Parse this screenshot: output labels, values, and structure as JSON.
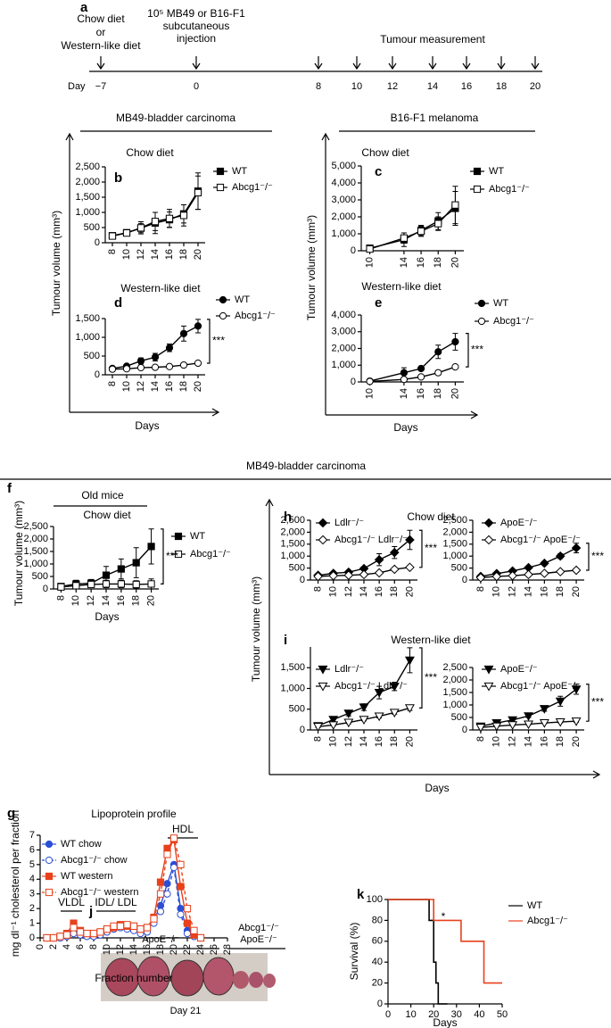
{
  "timeline": {
    "panel": "a",
    "day_label": "Day",
    "days": [
      "−7",
      "0",
      "8",
      "10",
      "12",
      "14",
      "16",
      "18",
      "20"
    ],
    "diet": [
      "Chow diet",
      "or",
      "Western-like diet"
    ],
    "injection": [
      "10⁵ MB49 or B16-F1",
      "subcutaneous",
      "injection"
    ],
    "measurement": "Tumour measurement"
  },
  "headers": [
    "MB49-bladder carcinoma",
    "B16-F1 melanoma",
    "MB49-bladder carcinoma"
  ],
  "axis_titles": [
    "Tumour volume (mm³)",
    "Days",
    "Tumour volume (mm³)",
    "Days",
    "Tumour volume (mm³)",
    "Days"
  ],
  "photo": {
    "panel": "j",
    "groups": [
      [
        "ApoE⁻/⁻"
      ],
      [
        "Abcg1⁻/⁻",
        "ApoE⁻/⁻"
      ]
    ],
    "caption": "Day 21"
  },
  "chart_data": [
    {
      "type": "line",
      "panel": "b",
      "title": "Chow diet",
      "x": [
        8,
        10,
        12,
        14,
        16,
        18,
        20
      ],
      "xlim": [
        7,
        21
      ],
      "xticks": [
        8,
        10,
        12,
        14,
        16,
        18,
        20
      ],
      "ylim": [
        0,
        2500
      ],
      "yticks": [
        0,
        500,
        {
          "value": 1000,
          "label": "1,000"
        },
        {
          "value": 1500,
          "label": "1,500"
        },
        {
          "value": 2000,
          "label": "2,000"
        },
        {
          "value": 2500,
          "label": "2,500"
        }
      ],
      "series": [
        {
          "name": "WT",
          "color": "#000000",
          "marker": "square",
          "filled": true,
          "values": [
            230,
            330,
            480,
            650,
            760,
            950,
            1700
          ],
          "errors": [
            50,
            80,
            150,
            350,
            250,
            300,
            600
          ]
        },
        {
          "name": "Abcg1⁻/⁻",
          "color": "#000000",
          "marker": "square",
          "filled": false,
          "values": [
            220,
            320,
            490,
            700,
            800,
            900,
            1650
          ],
          "errors": [
            50,
            80,
            200,
            300,
            300,
            350,
            550
          ]
        }
      ]
    },
    {
      "type": "line",
      "panel": "d",
      "title": "Western-like diet",
      "annotation": "***",
      "x": [
        8,
        10,
        12,
        14,
        16,
        18,
        20
      ],
      "xlim": [
        7,
        21
      ],
      "xticks": [
        8,
        10,
        12,
        14,
        16,
        18,
        20
      ],
      "ylim": [
        0,
        1500
      ],
      "yticks": [
        0,
        500,
        {
          "value": 1000,
          "label": "1,000"
        },
        {
          "value": 1500,
          "label": "1,500"
        }
      ],
      "series": [
        {
          "name": "WT",
          "color": "#000000",
          "marker": "circle",
          "filled": true,
          "values": [
            170,
            230,
            370,
            470,
            720,
            1100,
            1300
          ],
          "errors": [
            30,
            50,
            80,
            100,
            100,
            200,
            180
          ]
        },
        {
          "name": "Abcg1⁻/⁻",
          "color": "#000000",
          "marker": "circle",
          "filled": false,
          "values": [
            150,
            160,
            190,
            200,
            220,
            260,
            310
          ],
          "errors": [
            20,
            30,
            30,
            30,
            30,
            40,
            50
          ]
        }
      ]
    },
    {
      "type": "line",
      "panel": "c",
      "title": "Chow diet",
      "x": [
        10,
        14,
        16,
        18,
        20
      ],
      "xlim": [
        9,
        21
      ],
      "xticks": [
        10,
        14,
        16,
        18,
        20
      ],
      "ylim": [
        0,
        5000
      ],
      "yticks": [
        0,
        {
          "value": 1000,
          "label": "1,000"
        },
        {
          "value": 2000,
          "label": "2,000"
        },
        {
          "value": 3000,
          "label": "3,000"
        },
        {
          "value": 4000,
          "label": "4,000"
        },
        {
          "value": 5000,
          "label": "5,000"
        }
      ],
      "series": [
        {
          "name": "WT",
          "color": "#000000",
          "marker": "square",
          "filled": true,
          "values": [
            150,
            650,
            1200,
            1750,
            2500
          ],
          "errors": [
            100,
            400,
            300,
            500,
            1000
          ]
        },
        {
          "name": "Abcg1⁻/⁻",
          "color": "#000000",
          "marker": "square",
          "filled": false,
          "values": [
            100,
            750,
            1150,
            1600,
            2700
          ],
          "errors": [
            100,
            300,
            300,
            400,
            1100
          ]
        }
      ]
    },
    {
      "type": "line",
      "panel": "e",
      "title": "Western-like diet",
      "annotation": "***",
      "x": [
        10,
        14,
        16,
        18,
        20
      ],
      "xlim": [
        9,
        21
      ],
      "xticks": [
        10,
        14,
        16,
        18,
        20
      ],
      "ylim": [
        0,
        4000
      ],
      "yticks": [
        0,
        {
          "value": 1000,
          "label": "1,000"
        },
        {
          "value": 2000,
          "label": "2,000"
        },
        {
          "value": 3000,
          "label": "3,000"
        },
        {
          "value": 4000,
          "label": "4,000"
        }
      ],
      "series": [
        {
          "name": "WT",
          "color": "#000000",
          "marker": "circle",
          "filled": true,
          "values": [
            50,
            550,
            800,
            1800,
            2400
          ],
          "errors": [
            50,
            300,
            100,
            400,
            500
          ]
        },
        {
          "name": "Abcg1⁻/⁻",
          "color": "#000000",
          "marker": "circle",
          "filled": false,
          "values": [
            30,
            150,
            300,
            550,
            900
          ],
          "errors": [
            20,
            50,
            50,
            100,
            100
          ]
        }
      ]
    },
    {
      "type": "line",
      "panel": "f",
      "subtitle": "Old mice",
      "title": "Chow diet",
      "annotation": "***",
      "ylabel": "Tumour volume (mm³)",
      "xlabel": "Days",
      "x": [
        8,
        10,
        12,
        14,
        16,
        18,
        20
      ],
      "xlim": [
        7,
        21
      ],
      "xticks": [
        8,
        10,
        12,
        14,
        16,
        18,
        20
      ],
      "ylim": [
        0,
        2500
      ],
      "yticks": [
        0,
        500,
        {
          "value": 1000,
          "label": "1,000"
        },
        {
          "value": 1500,
          "label": "1,500"
        },
        {
          "value": 2000,
          "label": "2,000"
        },
        {
          "value": 2500,
          "label": "2,500"
        }
      ],
      "series": [
        {
          "name": "WT",
          "color": "#000000",
          "marker": "square",
          "filled": true,
          "values": [
            100,
            200,
            230,
            550,
            800,
            1050,
            1700
          ],
          "errors": [
            50,
            150,
            150,
            350,
            400,
            600,
            700
          ]
        },
        {
          "name": "Abcg1⁻/⁻",
          "color": "#000000",
          "marker": "square",
          "filled": false,
          "values": [
            80,
            130,
            180,
            200,
            200,
            180,
            200
          ],
          "errors": [
            50,
            80,
            100,
            150,
            150,
            150,
            200
          ]
        }
      ]
    },
    {
      "type": "line",
      "panel": "h",
      "title": "Chow diet",
      "annotation": "***",
      "x": [
        8,
        10,
        12,
        14,
        16,
        18,
        20
      ],
      "xlim": [
        7,
        21
      ],
      "xticks": [
        8,
        10,
        12,
        14,
        16,
        18,
        20
      ],
      "ylim": [
        0,
        2500
      ],
      "yticks": [
        0,
        500,
        {
          "value": 1000,
          "label": "1,000"
        },
        {
          "value": 1500,
          "label": "1,500"
        },
        {
          "value": 2000,
          "label": "2,000"
        },
        {
          "value": 2500,
          "label": "2,500"
        }
      ],
      "series": [
        {
          "name": "Ldlr⁻/⁻",
          "color": "#000000",
          "marker": "diamond",
          "filled": true,
          "values": [
            200,
            280,
            330,
            480,
            850,
            1150,
            1680
          ],
          "errors": [
            30,
            50,
            50,
            80,
            250,
            250,
            400
          ]
        },
        {
          "name": "Abcg1⁻/⁻ Ldlr⁻/⁻",
          "color": "#000000",
          "marker": "diamond",
          "filled": false,
          "values": [
            150,
            180,
            200,
            230,
            300,
            450,
            530
          ],
          "errors": [
            20,
            30,
            30,
            30,
            50,
            50,
            60
          ]
        }
      ]
    },
    {
      "type": "line",
      "annotation": "***",
      "x": [
        8,
        10,
        12,
        14,
        16,
        18,
        20
      ],
      "xlim": [
        7,
        21
      ],
      "xticks": [
        8,
        10,
        12,
        14,
        16,
        18,
        20
      ],
      "ylim": [
        0,
        2500
      ],
      "yticks": [
        0,
        500,
        {
          "value": 1000,
          "label": "1,000"
        },
        {
          "value": 1500,
          "label": "1,500"
        },
        {
          "value": 2000,
          "label": "2,000"
        },
        {
          "value": 2500,
          "label": "2,500"
        }
      ],
      "series": [
        {
          "name": "ApoE⁻/⁻",
          "color": "#000000",
          "marker": "diamond",
          "filled": true,
          "values": [
            150,
            270,
            380,
            520,
            700,
            1000,
            1340
          ],
          "errors": [
            30,
            40,
            50,
            60,
            80,
            100,
            200
          ]
        },
        {
          "name": "Abcg1⁻/⁻ ApoE⁻/⁻",
          "color": "#000000",
          "marker": "diamond",
          "filled": false,
          "values": [
            100,
            150,
            180,
            230,
            280,
            350,
            410
          ],
          "errors": [
            20,
            20,
            30,
            30,
            40,
            40,
            50
          ]
        }
      ]
    },
    {
      "type": "line",
      "panel": "i",
      "title": "Western-like diet",
      "annotation": "***",
      "x": [
        8,
        10,
        12,
        14,
        16,
        18,
        20
      ],
      "xlim": [
        7,
        21
      ],
      "xticks": [
        8,
        10,
        12,
        14,
        16,
        18,
        20
      ],
      "ylim": [
        0,
        2000
      ],
      "yticks": [
        0,
        500,
        {
          "value": 1000,
          "label": "1,000"
        },
        {
          "value": 1500,
          "label": "1,500"
        }
      ],
      "series": [
        {
          "name": "Ldlr⁻/⁻",
          "color": "#000000",
          "marker": "triangle",
          "filled": true,
          "values": [
            100,
            250,
            400,
            550,
            900,
            1050,
            1680
          ],
          "errors": [
            30,
            50,
            60,
            80,
            150,
            100,
            300
          ]
        },
        {
          "name": "Abcg1⁻/⁻ Ldlr⁻/⁻",
          "color": "#000000",
          "marker": "triangle",
          "filled": false,
          "values": [
            80,
            120,
            180,
            250,
            330,
            420,
            530
          ],
          "errors": [
            20,
            20,
            30,
            30,
            40,
            40,
            60
          ]
        }
      ]
    },
    {
      "type": "line",
      "annotation": "***",
      "x": [
        8,
        10,
        12,
        14,
        16,
        18,
        20
      ],
      "xlim": [
        7,
        21
      ],
      "xticks": [
        8,
        10,
        12,
        14,
        16,
        18,
        20
      ],
      "ylim": [
        0,
        2500
      ],
      "yticks": [
        0,
        500,
        {
          "value": 1000,
          "label": "1,000"
        },
        {
          "value": 1500,
          "label": "1,500"
        },
        {
          "value": 2000,
          "label": "2,000"
        },
        {
          "value": 2500,
          "label": "2,500"
        }
      ],
      "series": [
        {
          "name": "ApoE⁻/⁻",
          "color": "#000000",
          "marker": "triangle",
          "filled": true,
          "values": [
            150,
            280,
            400,
            560,
            850,
            1150,
            1630
          ],
          "errors": [
            30,
            40,
            50,
            60,
            100,
            200,
            200
          ]
        },
        {
          "name": "Abcg1⁻/⁻ ApoE⁻/⁻",
          "color": "#000000",
          "marker": "triangle",
          "filled": false,
          "values": [
            100,
            150,
            200,
            230,
            280,
            320,
            350
          ],
          "errors": [
            20,
            20,
            30,
            30,
            30,
            40,
            40
          ]
        }
      ]
    },
    {
      "type": "line",
      "panel": "g",
      "title": "Lipoprotein profile",
      "ylabel": "mg dl⁻¹ cholesterol per fraction",
      "xlabel": "Fraction number",
      "annotations": [
        "VLDL",
        "IDL/ LDL",
        "HDL"
      ],
      "x": [
        1,
        2,
        3,
        4,
        5,
        6,
        7,
        8,
        9,
        10,
        11,
        12,
        13,
        14,
        15,
        16,
        17,
        18,
        19,
        20,
        21,
        22,
        23,
        24
      ],
      "xlim": [
        0,
        28
      ],
      "xticks": [
        0,
        2,
        4,
        6,
        8,
        10,
        12,
        14,
        16,
        18,
        20,
        22,
        24,
        26,
        28
      ],
      "ylim": [
        0,
        7
      ],
      "yticks": [
        0,
        1,
        2,
        3,
        4,
        5,
        6,
        7
      ],
      "series": [
        {
          "name": "WT chow",
          "color": "#2a4fd6",
          "marker": "circle",
          "filled": true,
          "dashed": false,
          "values": [
            0,
            0,
            0,
            0.1,
            0.5,
            0.3,
            0.2,
            0.2,
            0.3,
            0.5,
            0.6,
            0.7,
            0.7,
            0.6,
            0.4,
            0.5,
            1.2,
            2.2,
            3.7,
            5.0,
            2.0,
            0.5,
            0.1,
            0
          ]
        },
        {
          "name": "Abcg1⁻/⁻ chow",
          "color": "#2a4fd6",
          "marker": "circle",
          "filled": false,
          "dashed": true,
          "values": [
            0,
            0,
            0,
            0.1,
            0.3,
            0.2,
            0.1,
            0.1,
            0.2,
            0.4,
            0.6,
            0.7,
            0.6,
            0.5,
            0.3,
            0.4,
            1.0,
            1.8,
            3.0,
            4.8,
            1.6,
            0.3,
            0.1,
            0
          ]
        },
        {
          "name": "WT western",
          "color": "#e8411c",
          "marker": "square",
          "filled": true,
          "dashed": false,
          "values": [
            0,
            0,
            0.1,
            0.3,
            1.0,
            0.5,
            0.3,
            0.3,
            0.4,
            0.6,
            0.7,
            0.9,
            0.8,
            0.8,
            0.6,
            0.7,
            1.4,
            3.8,
            6.1,
            6.7,
            3.5,
            1.0,
            0.2,
            0
          ]
        },
        {
          "name": "Abcg1⁻/⁻ western",
          "color": "#e8411c",
          "marker": "square",
          "filled": false,
          "dashed": true,
          "values": [
            0,
            0,
            0.1,
            0.2,
            0.7,
            0.4,
            0.3,
            0.3,
            0.4,
            0.6,
            0.8,
            0.8,
            0.9,
            0.8,
            0.6,
            0.7,
            1.3,
            3.0,
            5.7,
            6.8,
            5.0,
            2.0,
            0.5,
            0
          ]
        }
      ]
    },
    {
      "type": "step",
      "panel": "k",
      "annotation": "*",
      "ylabel": "Survival (%)",
      "xlabel": "Days",
      "xlim": [
        0,
        50
      ],
      "xticks": [
        0,
        10,
        20,
        30,
        40,
        50
      ],
      "ylim": [
        0,
        100
      ],
      "yticks": [
        0,
        20,
        40,
        60,
        80,
        100
      ],
      "series": [
        {
          "name": "WT",
          "color": "#000000",
          "x": [
            0,
            18,
            20,
            21,
            22,
            26
          ],
          "values": [
            100,
            80,
            40,
            20,
            0,
            0
          ]
        },
        {
          "name": "Abcg1⁻/⁻",
          "color": "#e8411c",
          "x": [
            0,
            20,
            32,
            42,
            50
          ],
          "values": [
            100,
            80,
            60,
            20,
            20
          ]
        }
      ]
    }
  ]
}
